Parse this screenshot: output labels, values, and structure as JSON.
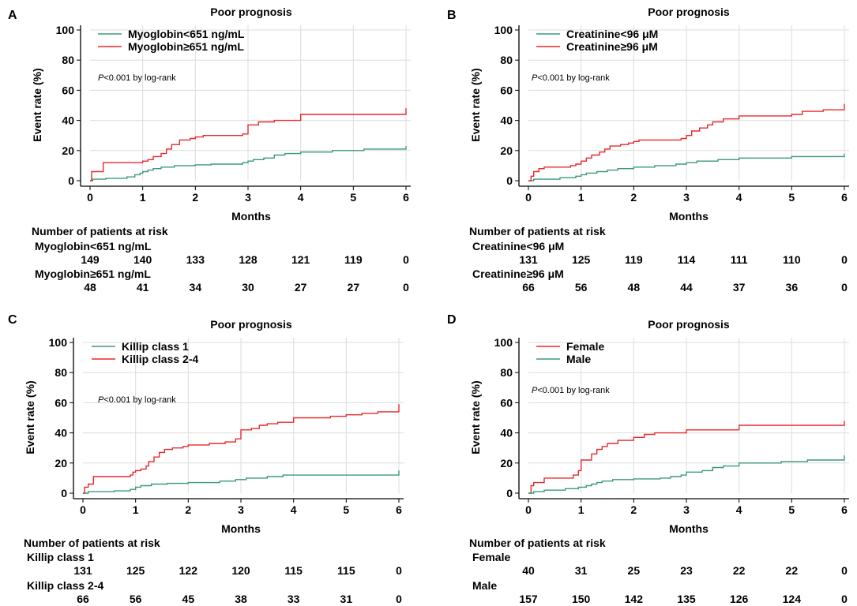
{
  "figure": {
    "x_axis_label": "Months",
    "y_axis_label": "Event rate (%)",
    "risk_title": "Number of patients at risk",
    "ylim": [
      0,
      100
    ],
    "xlim": [
      0,
      6
    ],
    "xticks": [
      0,
      1,
      2,
      3,
      4,
      5,
      6
    ],
    "yticks": [
      0,
      20,
      40,
      60,
      80,
      100
    ],
    "grid": true,
    "colors": {
      "green": "#3a9a78",
      "red": "#e8292c"
    }
  },
  "chart_data": [
    {
      "panel": "A",
      "type": "line",
      "title": "Poor prognosis",
      "annotation_p": "P",
      "annotation_rest": "<0.001 by log-rank",
      "legend": [
        {
          "name": "Myoglobin<651 ng/mL",
          "color": "#3a9a78"
        },
        {
          "name": "Myoglobin≥651 ng/mL",
          "color": "#e8292c"
        }
      ],
      "series": [
        {
          "name": "Myoglobin<651 ng/mL",
          "color": "#3a9a78",
          "points": [
            [
              0,
              0
            ],
            [
              0.05,
              1
            ],
            [
              0.3,
              1.5
            ],
            [
              0.7,
              2.5
            ],
            [
              0.85,
              4
            ],
            [
              0.95,
              5
            ],
            [
              1.0,
              6
            ],
            [
              1.1,
              7
            ],
            [
              1.2,
              8
            ],
            [
              1.35,
              9
            ],
            [
              1.6,
              10
            ],
            [
              2.0,
              10.5
            ],
            [
              2.3,
              11
            ],
            [
              2.9,
              12
            ],
            [
              3.0,
              13
            ],
            [
              3.1,
              14
            ],
            [
              3.3,
              15
            ],
            [
              3.5,
              17
            ],
            [
              3.7,
              18
            ],
            [
              4.0,
              19
            ],
            [
              4.6,
              20
            ],
            [
              5.2,
              21
            ],
            [
              6.0,
              21
            ],
            [
              6.0,
              23
            ]
          ]
        },
        {
          "name": "Myoglobin≥651 ng/mL",
          "color": "#e8292c",
          "points": [
            [
              0,
              0
            ],
            [
              0.03,
              6
            ],
            [
              0.25,
              12
            ],
            [
              1.0,
              13
            ],
            [
              1.1,
              14
            ],
            [
              1.2,
              16
            ],
            [
              1.35,
              18
            ],
            [
              1.45,
              21
            ],
            [
              1.55,
              24
            ],
            [
              1.7,
              27
            ],
            [
              1.9,
              28
            ],
            [
              2.0,
              29
            ],
            [
              2.15,
              30
            ],
            [
              2.9,
              31
            ],
            [
              3.0,
              37
            ],
            [
              3.2,
              39
            ],
            [
              3.5,
              40
            ],
            [
              4.0,
              44
            ],
            [
              6.0,
              44
            ],
            [
              6.0,
              48
            ]
          ]
        }
      ],
      "risk": {
        "rows": [
          {
            "label": "Myoglobin<651 ng/mL",
            "values": [
              "149",
              "140",
              "133",
              "128",
              "121",
              "119",
              "0"
            ]
          },
          {
            "label": "Myoglobin≥651 ng/mL",
            "values": [
              "48",
              "41",
              "34",
              "30",
              "27",
              "27",
              "0"
            ]
          }
        ]
      }
    },
    {
      "panel": "B",
      "type": "line",
      "title": "Poor prognosis",
      "annotation_p": "P",
      "annotation_rest": "<0.001 by log-rank",
      "legend": [
        {
          "name": "Creatinine<96 μM",
          "color": "#3a9a78"
        },
        {
          "name": "Creatinine≥96 μM",
          "color": "#e8292c"
        }
      ],
      "series": [
        {
          "name": "Creatinine<96 μM",
          "color": "#3a9a78",
          "points": [
            [
              0,
              0
            ],
            [
              0.1,
              1
            ],
            [
              0.6,
              2
            ],
            [
              0.9,
              3
            ],
            [
              1.0,
              4
            ],
            [
              1.1,
              5
            ],
            [
              1.3,
              6
            ],
            [
              1.5,
              7
            ],
            [
              1.7,
              8
            ],
            [
              2.0,
              9
            ],
            [
              2.4,
              10
            ],
            [
              2.8,
              11
            ],
            [
              3.0,
              12
            ],
            [
              3.2,
              13
            ],
            [
              3.6,
              14
            ],
            [
              4.0,
              15
            ],
            [
              5.0,
              16
            ],
            [
              6.0,
              16
            ],
            [
              6.0,
              18
            ]
          ]
        },
        {
          "name": "Creatinine≥96 μM",
          "color": "#e8292c",
          "points": [
            [
              0,
              0
            ],
            [
              0.05,
              3
            ],
            [
              0.1,
              6
            ],
            [
              0.2,
              8
            ],
            [
              0.3,
              9
            ],
            [
              0.8,
              10
            ],
            [
              0.9,
              11
            ],
            [
              1.0,
              13
            ],
            [
              1.1,
              15
            ],
            [
              1.2,
              17
            ],
            [
              1.35,
              19
            ],
            [
              1.45,
              21
            ],
            [
              1.55,
              23
            ],
            [
              1.75,
              24
            ],
            [
              1.9,
              25
            ],
            [
              2.0,
              26
            ],
            [
              2.1,
              27
            ],
            [
              2.9,
              28
            ],
            [
              3.0,
              30
            ],
            [
              3.1,
              33
            ],
            [
              3.25,
              35
            ],
            [
              3.4,
              37
            ],
            [
              3.5,
              39
            ],
            [
              3.7,
              41
            ],
            [
              4.0,
              43
            ],
            [
              5.0,
              44
            ],
            [
              5.2,
              46
            ],
            [
              5.6,
              47
            ],
            [
              6.0,
              47
            ],
            [
              6.0,
              51
            ]
          ]
        }
      ],
      "risk": {
        "rows": [
          {
            "label": "Creatinine<96 μM",
            "values": [
              "131",
              "125",
              "119",
              "114",
              "111",
              "110",
              "0"
            ]
          },
          {
            "label": "Creatinine≥96 μM",
            "values": [
              "66",
              "56",
              "48",
              "44",
              "37",
              "36",
              "0"
            ]
          }
        ]
      }
    },
    {
      "panel": "C",
      "type": "line",
      "title": "Poor prognosis",
      "annotation_p": "P",
      "annotation_rest": "<0.001 by log-rank",
      "legend": [
        {
          "name": "Killip class 1",
          "color": "#3a9a78"
        },
        {
          "name": "Killip class 2-4",
          "color": "#e8292c"
        }
      ],
      "series": [
        {
          "name": "Killip class 1",
          "color": "#3a9a78",
          "points": [
            [
              0,
              0
            ],
            [
              0.1,
              1
            ],
            [
              0.6,
              1.5
            ],
            [
              0.9,
              2.5
            ],
            [
              1.0,
              4
            ],
            [
              1.1,
              5
            ],
            [
              1.3,
              6
            ],
            [
              1.6,
              6.5
            ],
            [
              2.0,
              7
            ],
            [
              2.6,
              8
            ],
            [
              2.9,
              9
            ],
            [
              3.1,
              10
            ],
            [
              3.5,
              11
            ],
            [
              3.8,
              12
            ],
            [
              4.5,
              12
            ],
            [
              6.0,
              12
            ],
            [
              6.0,
              15
            ]
          ]
        },
        {
          "name": "Killip class 2-4",
          "color": "#e8292c",
          "points": [
            [
              0,
              0
            ],
            [
              0.03,
              4
            ],
            [
              0.1,
              6
            ],
            [
              0.2,
              11
            ],
            [
              0.9,
              12
            ],
            [
              0.95,
              14
            ],
            [
              1.0,
              15
            ],
            [
              1.1,
              16
            ],
            [
              1.2,
              18
            ],
            [
              1.25,
              21
            ],
            [
              1.35,
              24
            ],
            [
              1.45,
              27
            ],
            [
              1.55,
              29
            ],
            [
              1.7,
              30
            ],
            [
              1.9,
              31
            ],
            [
              2.0,
              32
            ],
            [
              2.4,
              33
            ],
            [
              2.7,
              34
            ],
            [
              2.9,
              36
            ],
            [
              3.0,
              42
            ],
            [
              3.2,
              43
            ],
            [
              3.35,
              45
            ],
            [
              3.5,
              46
            ],
            [
              3.7,
              47
            ],
            [
              4.0,
              50
            ],
            [
              4.7,
              51
            ],
            [
              5.0,
              52
            ],
            [
              5.3,
              53
            ],
            [
              5.6,
              54
            ],
            [
              6.0,
              55
            ],
            [
              6.0,
              59
            ]
          ]
        }
      ],
      "risk": {
        "rows": [
          {
            "label": "Killip class 1",
            "values": [
              "131",
              "125",
              "122",
              "120",
              "115",
              "115",
              "0"
            ]
          },
          {
            "label": "Killip class 2-4",
            "values": [
              "66",
              "56",
              "45",
              "38",
              "33",
              "31",
              "0"
            ]
          }
        ]
      }
    },
    {
      "panel": "D",
      "type": "line",
      "title": "Poor prognosis",
      "annotation_p": "P",
      "annotation_rest": "<0.001 by log-rank",
      "legend": [
        {
          "name": "Female",
          "color": "#e8292c"
        },
        {
          "name": "Male",
          "color": "#3a9a78"
        }
      ],
      "series": [
        {
          "name": "Female",
          "color": "#e8292c",
          "points": [
            [
              0,
              0
            ],
            [
              0.05,
              5
            ],
            [
              0.1,
              7
            ],
            [
              0.3,
              10
            ],
            [
              0.85,
              12
            ],
            [
              0.95,
              15
            ],
            [
              1.0,
              22
            ],
            [
              1.2,
              26
            ],
            [
              1.3,
              29
            ],
            [
              1.4,
              31
            ],
            [
              1.5,
              33
            ],
            [
              1.7,
              35
            ],
            [
              2.0,
              37
            ],
            [
              2.2,
              39
            ],
            [
              2.4,
              40
            ],
            [
              3.0,
              42
            ],
            [
              4.0,
              45
            ],
            [
              6.0,
              45
            ],
            [
              6.0,
              48
            ]
          ]
        },
        {
          "name": "Male",
          "color": "#3a9a78",
          "points": [
            [
              0,
              0
            ],
            [
              0.1,
              1
            ],
            [
              0.3,
              2
            ],
            [
              0.7,
              3
            ],
            [
              0.95,
              4
            ],
            [
              1.1,
              5
            ],
            [
              1.2,
              6
            ],
            [
              1.3,
              7
            ],
            [
              1.4,
              8
            ],
            [
              1.6,
              9
            ],
            [
              2.0,
              9.5
            ],
            [
              2.5,
              10
            ],
            [
              2.7,
              11
            ],
            [
              2.9,
              12
            ],
            [
              3.0,
              14
            ],
            [
              3.3,
              15
            ],
            [
              3.5,
              17
            ],
            [
              3.7,
              18
            ],
            [
              4.0,
              20
            ],
            [
              4.8,
              21
            ],
            [
              5.3,
              22
            ],
            [
              6.0,
              22
            ],
            [
              6.0,
              25
            ]
          ]
        }
      ],
      "risk": {
        "rows": [
          {
            "label": "Female",
            "values": [
              "40",
              "31",
              "25",
              "23",
              "22",
              "22",
              "0"
            ]
          },
          {
            "label": "Male",
            "values": [
              "157",
              "150",
              "142",
              "135",
              "126",
              "124",
              "0"
            ]
          }
        ]
      }
    }
  ]
}
